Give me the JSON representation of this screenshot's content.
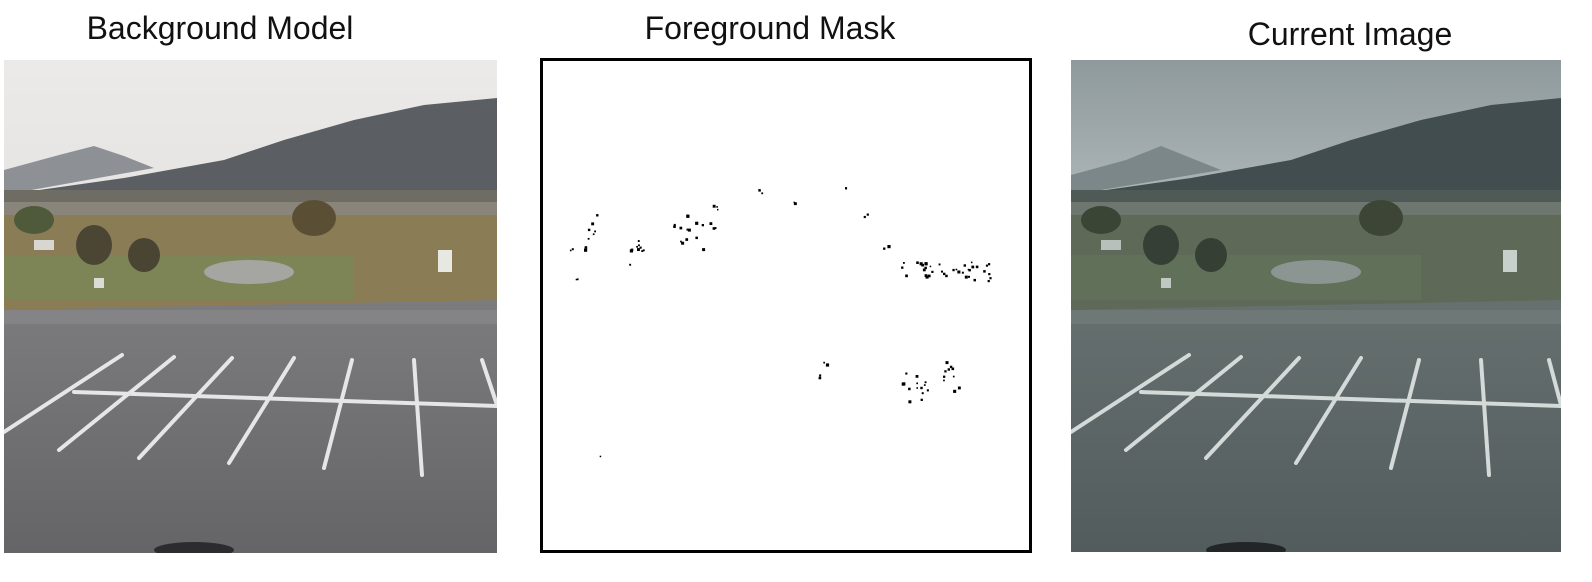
{
  "titles": {
    "background": "Background Model",
    "foreground": "Foreground Mask",
    "current": "Current Image"
  },
  "colors": {
    "sky_bg": "#e6e4e2",
    "sky_cur": "#b9c2c3",
    "mountain_bg": "#565a5f",
    "mountain_cur": "#3e4a4b",
    "asphalt_bg": "#6e6d6f",
    "asphalt_cur": "#5a6465",
    "grass_bg": "#8a7c55",
    "grass_cur": "#5d6a55",
    "mask_dot": "#000000"
  },
  "icons": {
    "background": "parking-lot-photo-icon",
    "current": "parking-lot-photo-icon"
  }
}
